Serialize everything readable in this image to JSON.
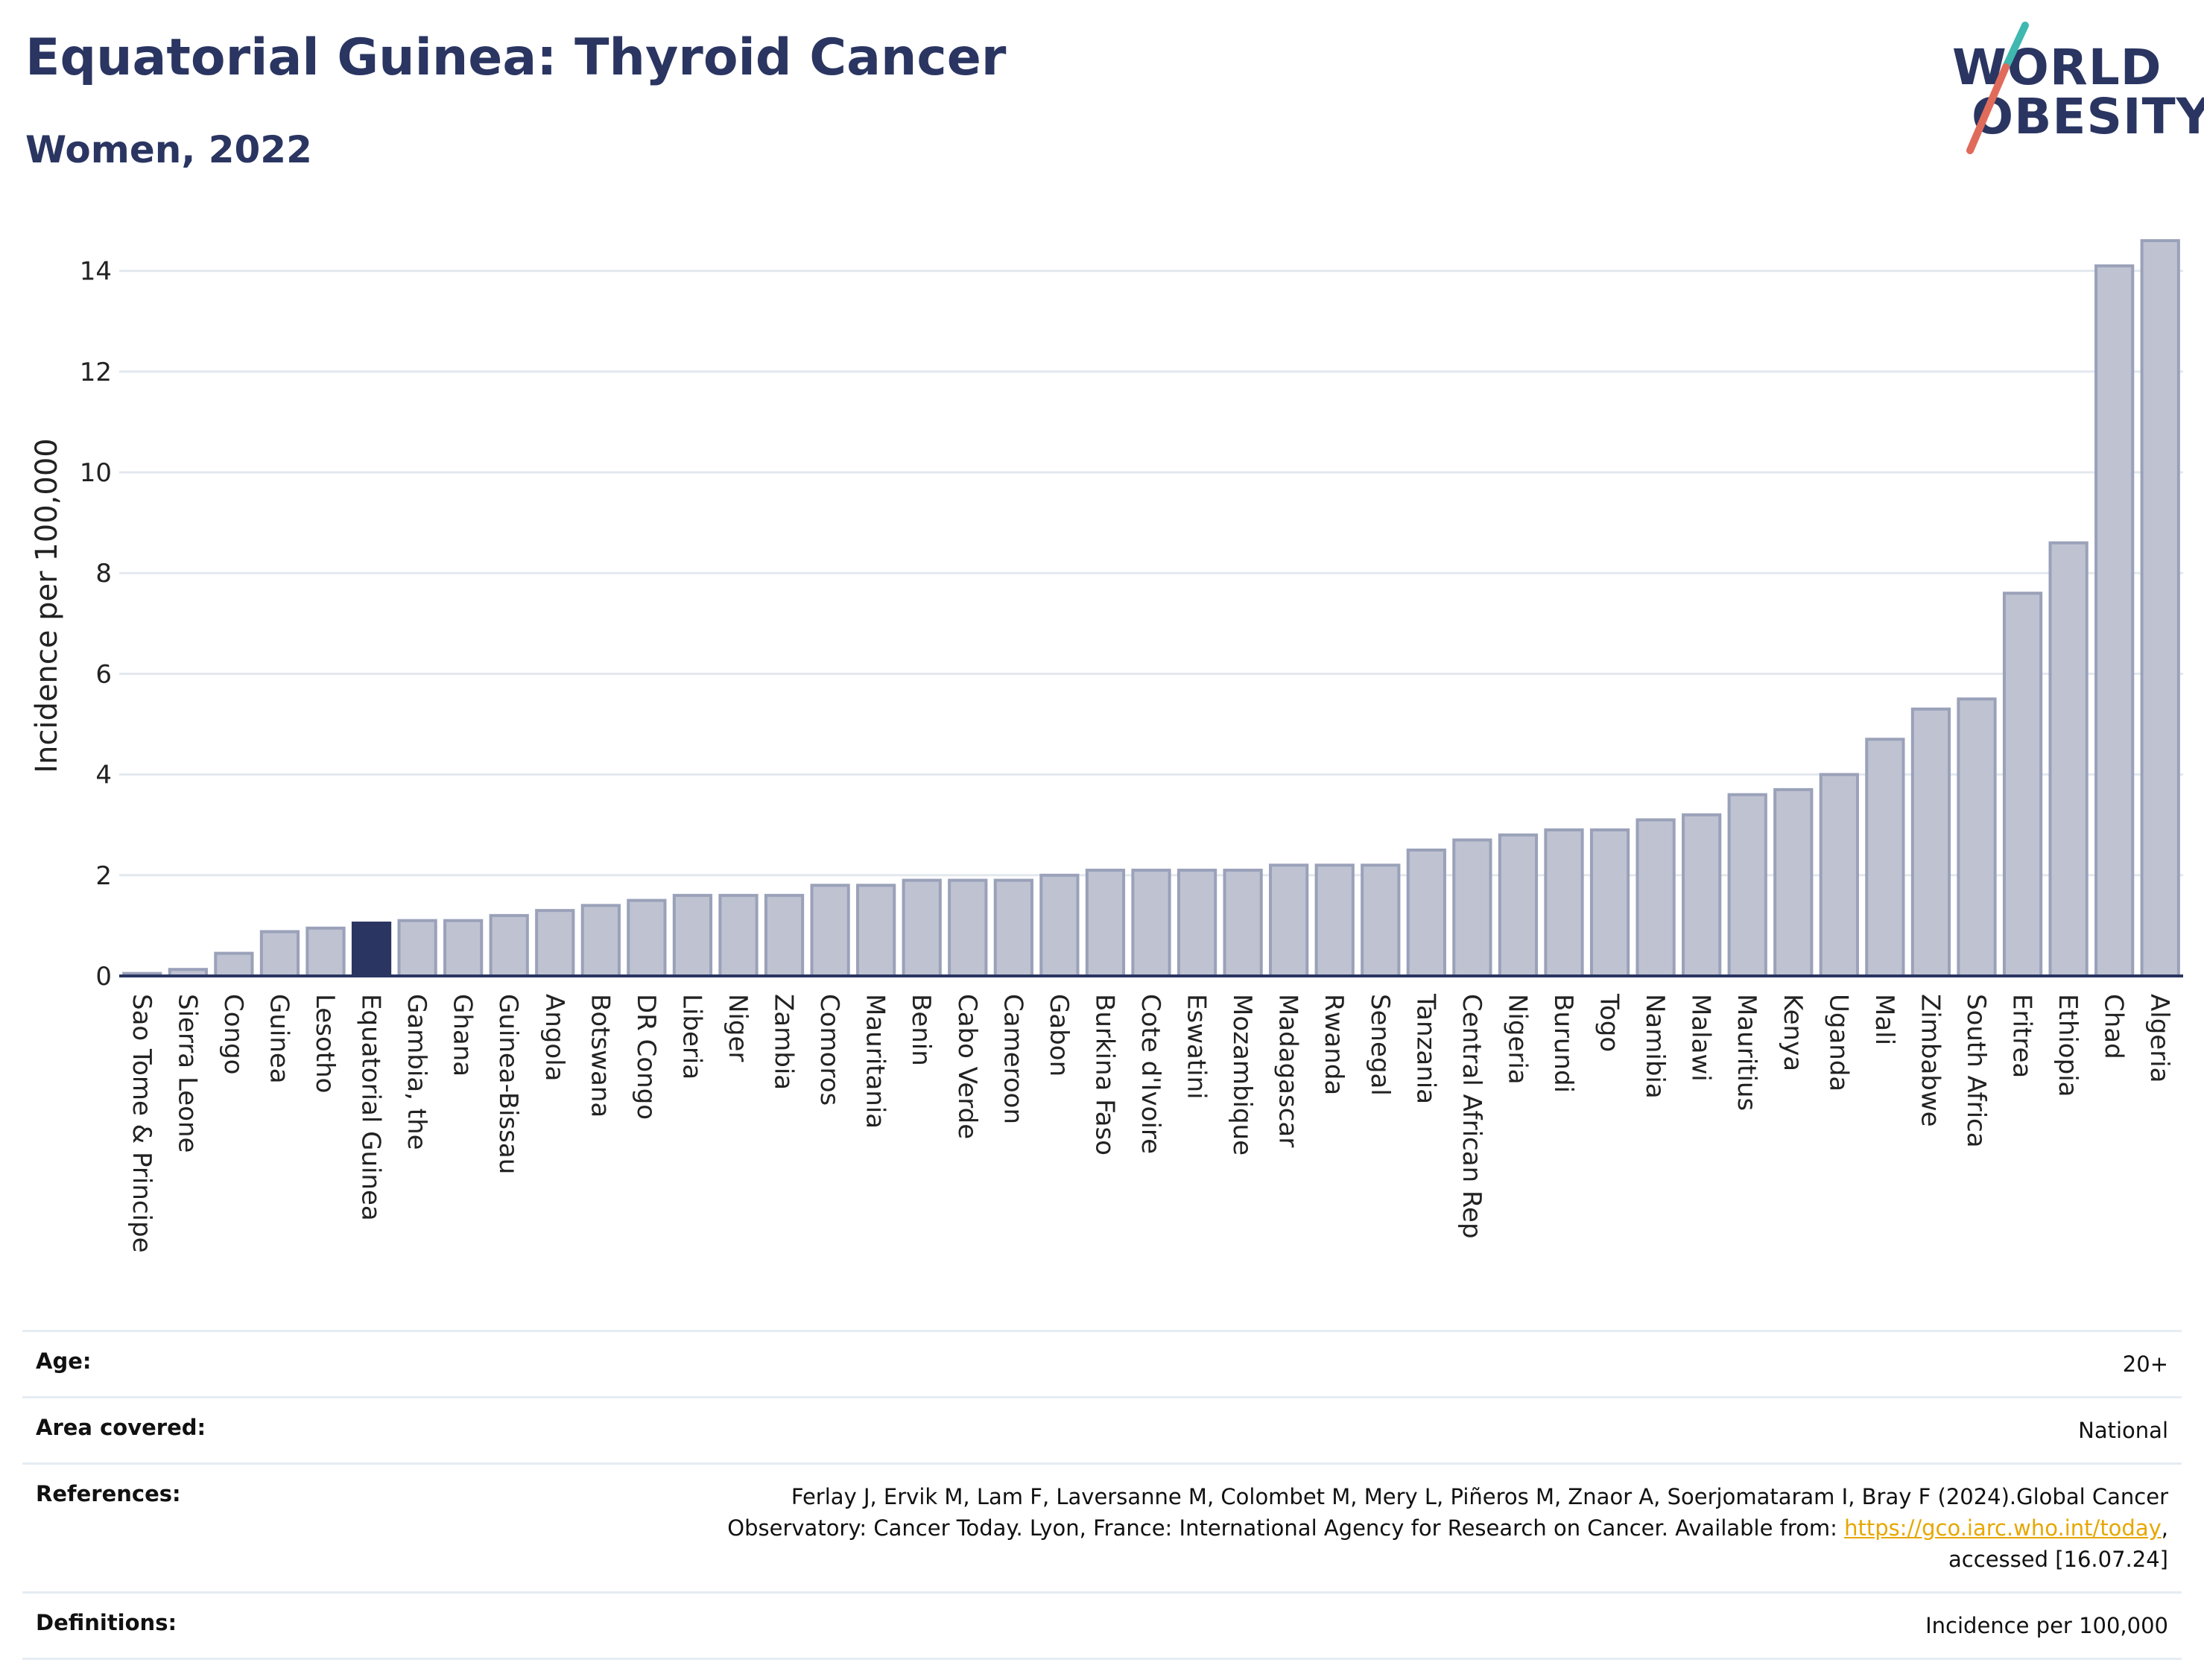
{
  "header": {
    "title": "Equatorial Guinea: Thyroid Cancer",
    "subtitle": "Women, 2022"
  },
  "logo": {
    "line1": "WORLD",
    "line2": "OBESITY",
    "colors": {
      "text": "#2a3561",
      "slash_teal": "#3fb8b0",
      "slash_red": "#e06b5b"
    }
  },
  "colors": {
    "bar_default": "#bfc3d1",
    "bar_border": "#9aa1b9",
    "bar_highlight": "#2a3561",
    "grid": "#e3e8ef",
    "axis": "#2a3561"
  },
  "chart_data": {
    "type": "bar",
    "title": "Equatorial Guinea: Thyroid Cancer",
    "subtitle": "Women, 2022",
    "xlabel": "",
    "ylabel": "Incidence per 100,000",
    "ylim": [
      0,
      15
    ],
    "yticks": [
      0,
      2,
      4,
      6,
      8,
      10,
      12,
      14
    ],
    "grid": true,
    "highlight": "Equatorial Guinea",
    "categories": [
      "Sao Tome & Principe",
      "Sierra Leone",
      "Congo",
      "Guinea",
      "Lesotho",
      "Equatorial Guinea",
      "Gambia, the",
      "Ghana",
      "Guinea-Bissau",
      "Angola",
      "Botswana",
      "DR Congo",
      "Liberia",
      "Niger",
      "Zambia",
      "Comoros",
      "Mauritania",
      "Benin",
      "Cabo Verde",
      "Cameroon",
      "Gabon",
      "Burkina Faso",
      "Cote d'Ivoire",
      "Eswatini",
      "Mozambique",
      "Madagascar",
      "Rwanda",
      "Senegal",
      "Tanzania",
      "Central African Rep",
      "Nigeria",
      "Burundi",
      "Togo",
      "Namibia",
      "Malawi",
      "Mauritius",
      "Kenya",
      "Uganda",
      "Mali",
      "Zimbabwe",
      "South Africa",
      "Eritrea",
      "Ethiopia",
      "Chad",
      "Algeria"
    ],
    "values": [
      0.05,
      0.13,
      0.45,
      0.88,
      0.95,
      1.05,
      1.1,
      1.1,
      1.2,
      1.3,
      1.4,
      1.5,
      1.6,
      1.6,
      1.6,
      1.8,
      1.8,
      1.9,
      1.9,
      1.9,
      2.0,
      2.1,
      2.1,
      2.1,
      2.1,
      2.2,
      2.2,
      2.2,
      2.5,
      2.7,
      2.8,
      2.9,
      2.9,
      3.1,
      3.2,
      3.6,
      3.7,
      4.0,
      4.7,
      5.3,
      5.5,
      7.6,
      8.6,
      14.1,
      14.6
    ]
  },
  "meta": {
    "age_label": "Age:",
    "age_value": "20+",
    "area_label": "Area covered:",
    "area_value": "National",
    "references_label": "References:",
    "references_text_1": "Ferlay J, Ervik M, Lam F, Laversanne M, Colombet M, Mery L, Piñeros M, Znaor A, Soerjomataram I, Bray F (2024).Global Cancer",
    "references_text_2": "Observatory: Cancer Today. Lyon, France: International Agency for Research on Cancer. Available from: ",
    "references_link": "https://gco.iarc.who.int/today",
    "references_text_3": ",",
    "references_text_4": "accessed [16.07.24]",
    "definitions_label": "Definitions:",
    "definitions_value": "Incidence per 100,000"
  }
}
